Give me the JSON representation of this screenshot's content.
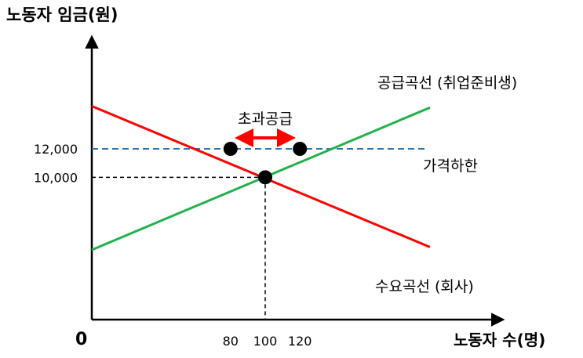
{
  "chart_data": {
    "type": "line",
    "ylabel": "노동자 임금(원)",
    "xlabel": "노동자 수(명)",
    "origin_label": "0",
    "x_ticks": [
      {
        "value": 80,
        "label": "80"
      },
      {
        "value": 100,
        "label": "100"
      },
      {
        "value": 120,
        "label": "120"
      }
    ],
    "y_ticks": [
      {
        "value": 12000,
        "label": "12,000"
      },
      {
        "value": 10000,
        "label": "10,000"
      }
    ],
    "series": [
      {
        "name": "공급곡선 (취업준비생)",
        "color": "#22b14c",
        "points": [
          [
            0,
            4900
          ],
          [
            195,
            14900
          ]
        ]
      },
      {
        "name": "수요곡선 (회사)",
        "color": "#ff0000",
        "points": [
          [
            0,
            15000
          ],
          [
            195,
            5100
          ]
        ]
      }
    ],
    "price_floor": {
      "value": 12000,
      "label": "가격하한",
      "color": "#2e75b6"
    },
    "excess_supply": {
      "from": 80,
      "to": 120,
      "at": 12000,
      "label": "초과공급",
      "color": "#ff0000"
    },
    "equilibrium": {
      "x": 100,
      "y": 10000
    },
    "points": [
      [
        80,
        12000
      ],
      [
        100,
        10000
      ],
      [
        120,
        12000
      ]
    ]
  }
}
